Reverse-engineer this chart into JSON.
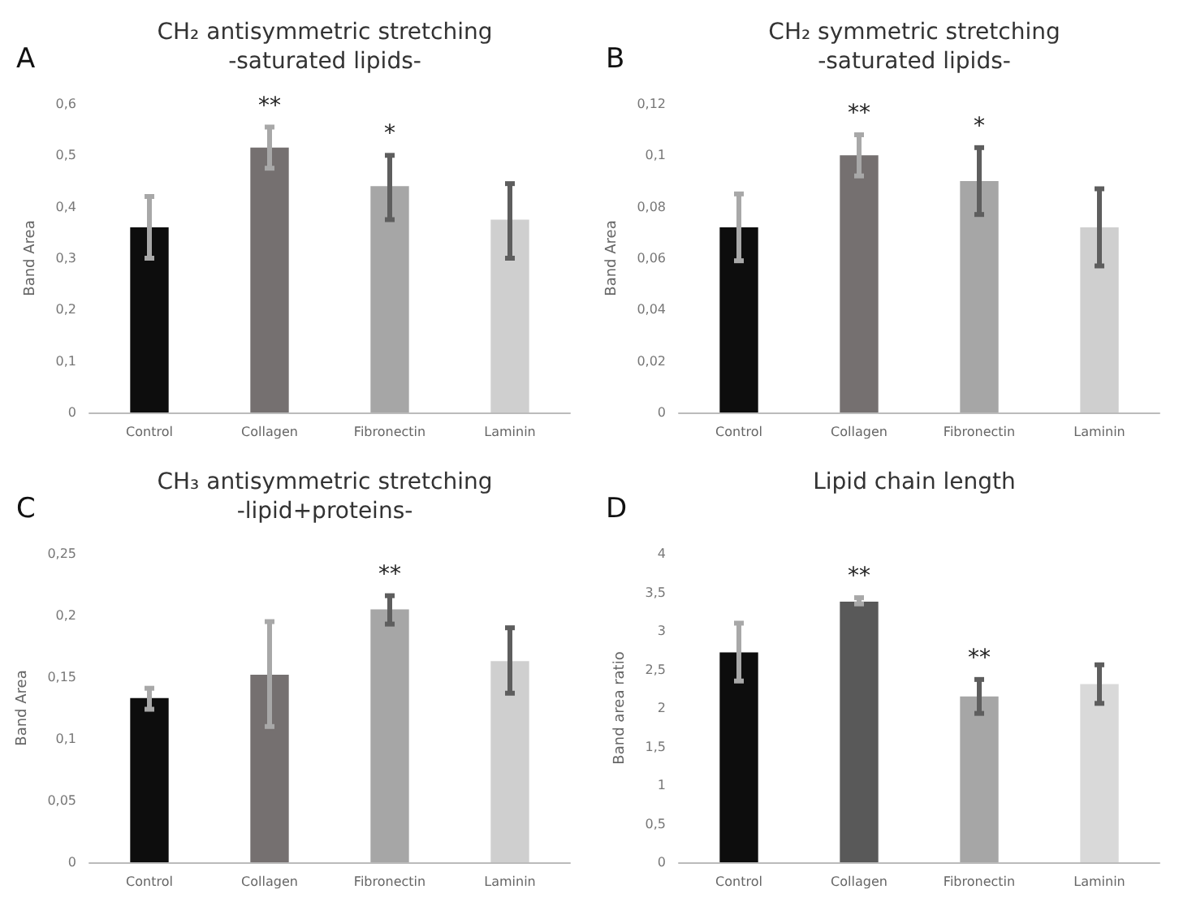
{
  "chart_data": [
    {
      "type": "bar",
      "title": "CH₂ antisymmetric stretching\n-saturated lipids-",
      "ylabel": "Band Area",
      "categories": [
        "Control",
        "Collagen",
        "Fibronectin",
        "Laminin"
      ],
      "values": [
        0.36,
        0.515,
        0.44,
        0.375
      ],
      "colors": [
        "#0d0d0d",
        "#757070",
        "#a6a6a6",
        "#cfcfcf"
      ],
      "errors": [
        [
          0.3,
          0.42
        ],
        [
          0.475,
          0.555
        ],
        [
          0.375,
          0.5
        ],
        [
          0.3,
          0.445
        ]
      ],
      "ylim": [
        0,
        0.6
      ],
      "yticks": [
        0,
        {
          "value": 0.1,
          "label": "0,1"
        },
        {
          "value": 0.2,
          "label": "0,2"
        },
        {
          "value": 0.3,
          "label": "0,3"
        },
        {
          "value": 0.4,
          "label": "0,4"
        },
        {
          "value": 0.5,
          "label": "0,5"
        },
        {
          "value": 0.6,
          "label": "0,6"
        }
      ],
      "grid": false,
      "annotations": [
        "A",
        {
          "text": "**",
          "x": "Collagen",
          "y": 0.515
        },
        {
          "text": "*",
          "x": "Fibronectin",
          "y": 0.44
        }
      ]
    },
    {
      "type": "bar",
      "title": "CH₂ symmetric stretching\n-saturated lipids-",
      "ylabel": "Band Area",
      "categories": [
        "Control",
        "Collagen",
        "Fibronectin",
        "Laminin"
      ],
      "values": [
        0.072,
        0.1,
        0.09,
        0.072
      ],
      "colors": [
        "#0d0d0d",
        "#757070",
        "#a6a6a6",
        "#cfcfcf"
      ],
      "errors": [
        [
          0.059,
          0.085
        ],
        [
          0.092,
          0.108
        ],
        [
          0.077,
          0.103
        ],
        [
          0.057,
          0.087
        ]
      ],
      "ylim": [
        0,
        0.12
      ],
      "yticks": [
        0,
        {
          "value": 0.02,
          "label": "0,02"
        },
        {
          "value": 0.04,
          "label": "0,04"
        },
        {
          "value": 0.06,
          "label": "0,06"
        },
        {
          "value": 0.08,
          "label": "0,08"
        },
        {
          "value": 0.1,
          "label": "0,1"
        },
        {
          "value": 0.12,
          "label": "0,12"
        }
      ],
      "grid": false,
      "annotations": [
        "B",
        {
          "text": "**",
          "x": "Collagen",
          "y": 0.1
        },
        {
          "text": "*",
          "x": "Fibronectin",
          "y": 0.09
        }
      ]
    },
    {
      "type": "bar",
      "title": "CH₃ antisymmetric stretching\n-lipid+proteins-",
      "ylabel": "Band Area",
      "categories": [
        "Control",
        "Collagen",
        "Fibronectin",
        "Laminin"
      ],
      "values": [
        0.133,
        0.152,
        0.205,
        0.163
      ],
      "colors": [
        "#0d0d0d",
        "#757070",
        "#a6a6a6",
        "#cfcfcf"
      ],
      "errors": [
        [
          0.124,
          0.141
        ],
        [
          0.11,
          0.195
        ],
        [
          0.193,
          0.216
        ],
        [
          0.137,
          0.19
        ]
      ],
      "ylim": [
        0,
        0.25
      ],
      "yticks": [
        0,
        {
          "value": 0.05,
          "label": "0,05"
        },
        {
          "value": 0.1,
          "label": "0,1"
        },
        {
          "value": 0.15,
          "label": "0,15"
        },
        {
          "value": 0.2,
          "label": "0,2"
        },
        {
          "value": 0.25,
          "label": "0,25"
        }
      ],
      "grid": false,
      "annotations": [
        "C",
        {
          "text": "**",
          "x": "Fibronectin",
          "y": 0.205
        }
      ]
    },
    {
      "type": "bar",
      "title": "Lipid chain length",
      "ylabel": "Band area ratio",
      "categories": [
        "Control",
        "Collagen",
        "Fibronectin",
        "Laminin"
      ],
      "values": [
        2.72,
        3.38,
        2.15,
        2.31
      ],
      "colors": [
        "#0d0d0d",
        "#595959",
        "#a6a6a6",
        "#d9d9d9"
      ],
      "errors": [
        [
          2.35,
          3.1
        ],
        [
          3.35,
          3.43
        ],
        [
          1.93,
          2.37
        ],
        [
          2.06,
          2.56
        ]
      ],
      "ylim": [
        0,
        4
      ],
      "yticks": [
        0,
        {
          "value": 0.5,
          "label": "0,5"
        },
        1,
        {
          "value": 1.5,
          "label": "1,5"
        },
        2,
        {
          "value": 2.5,
          "label": "2,5"
        },
        3,
        {
          "value": 3.5,
          "label": "3,5"
        },
        4
      ],
      "grid": false,
      "annotations": [
        "D",
        {
          "text": "**",
          "x": "Collagen",
          "y": 3.38
        },
        {
          "text": "**",
          "x": "Fibronectin",
          "y": 2.15
        }
      ]
    }
  ]
}
